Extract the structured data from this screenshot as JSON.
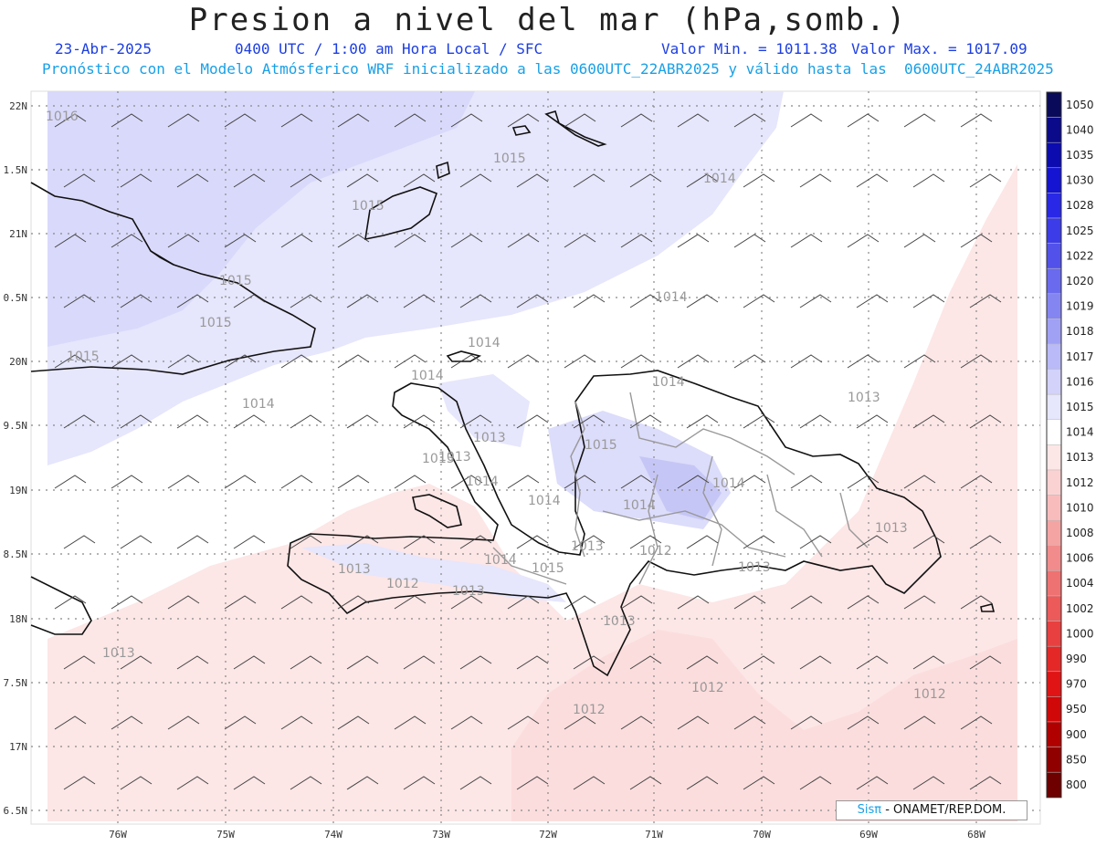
{
  "header": {
    "title": "Presion a nivel del mar (hPa,somb.)",
    "date": "23-Abr-2025",
    "time": "0400 UTC / 1:00 am Hora Local / SFC",
    "min_label": "Valor Min. = 1011.38",
    "max_label": "Valor Max. = 1017.09",
    "subtitle": "Pronóstico con el Modelo Atmósferico WRF inicializado a las 0600UTC_22ABR2025 y válido hasta las  0600UTC_24ABR2025"
  },
  "axes": {
    "lat_labels": [
      "22N",
      "1.5N",
      "21N",
      "0.5N",
      "20N",
      "9.5N",
      "19N",
      "8.5N",
      "18N",
      "7.5N",
      "17N",
      "6.5N"
    ],
    "lon_labels": [
      "76W",
      "75W",
      "74W",
      "73W",
      "72W",
      "71W",
      "70W",
      "69W",
      "68W"
    ]
  },
  "colorbar": {
    "levels": [
      "1050",
      "1040",
      "1035",
      "1030",
      "1028",
      "1025",
      "1022",
      "1020",
      "1019",
      "1018",
      "1017",
      "1016",
      "1015",
      "1014",
      "1013",
      "1012",
      "1010",
      "1008",
      "1006",
      "1004",
      "1002",
      "1000",
      "990",
      "970",
      "950",
      "900",
      "850",
      "800"
    ],
    "colors": [
      "#0a0a5a",
      "#0a0a8a",
      "#0b0bb0",
      "#1414d2",
      "#2828e6",
      "#3c3ce8",
      "#5252ea",
      "#6a6aee",
      "#8585f2",
      "#a0a0f4",
      "#babaf8",
      "#d2d2fa",
      "#e6e6fc",
      "#ffffff",
      "#fde6e6",
      "#fbd2d2",
      "#f8bcbc",
      "#f5a4a4",
      "#f28c8c",
      "#ef7272",
      "#ec5a5a",
      "#e84040",
      "#e42828",
      "#e01414",
      "#d00808",
      "#b00000",
      "#900000",
      "#6e0000"
    ]
  },
  "contour_labels": [
    "1016",
    "1015",
    "1015",
    "1015",
    "1015",
    "1015",
    "1014",
    "1014",
    "1014",
    "1014",
    "1014",
    "1014",
    "1013",
    "1013",
    "1013",
    "1013",
    "1013",
    "1013",
    "1014",
    "1014",
    "1015",
    "1014",
    "1014",
    "1013",
    "1012",
    "1012",
    "1012",
    "1012",
    "1012",
    "1013",
    "1013",
    "1013",
    "1014",
    "1013",
    "1015"
  ],
  "credit": {
    "brand": "Sisπ",
    "text": " - ONAMET/REP.DOM."
  }
}
